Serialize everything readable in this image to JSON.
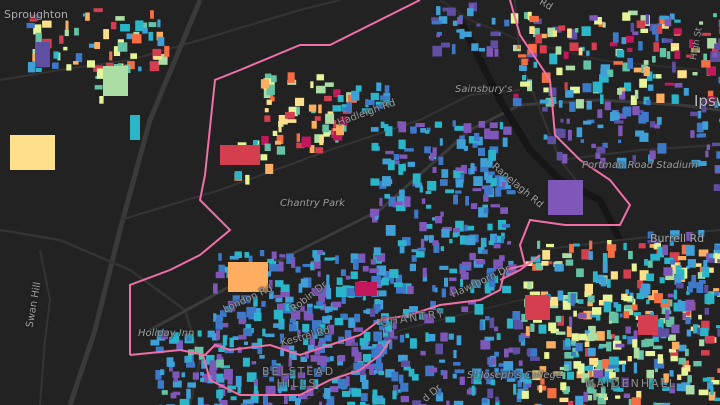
{
  "map": {
    "theme": "dark",
    "boundary_color": "#f06fa8",
    "palette": [
      "#5e4fa2",
      "#7e57b8",
      "#3d78c9",
      "#3fa0d8",
      "#2bb5c9",
      "#66c2a5",
      "#abdda4",
      "#e6f598",
      "#fee08b",
      "#fdae61",
      "#f46d43",
      "#d53e4f",
      "#c2185b"
    ],
    "labels": {
      "sproughton": "Sproughton",
      "hadleigh_rd": "Hadleigh Rd",
      "sainsburys": "Sainsbury's",
      "ranelagh_rd": "Ranelagh Rd",
      "portman_road_stadium": "Portman Road Stadium",
      "ipswich": "Ipsw",
      "high_st": "High St",
      "top_rd": "Rd",
      "burrell_rd": "Burrell Rd",
      "chantry_park": "Chantry Park",
      "swan_hill": "Swan Hill",
      "holiday_inn": "Holiday Inn",
      "london_rd": "London Rd",
      "robin_dr": "Robin Dr",
      "kestrel_rd": "Kestrel Rd",
      "belstead_hills": "BELSTEAD HILLS",
      "chantry": "CHANTRY",
      "hawthorn_dr": "Hawthorn Dr",
      "st_josephs_college": "St Joseph's College",
      "maidenhall": "MAIDENHALL",
      "bottom_dr": "d Dr"
    }
  }
}
